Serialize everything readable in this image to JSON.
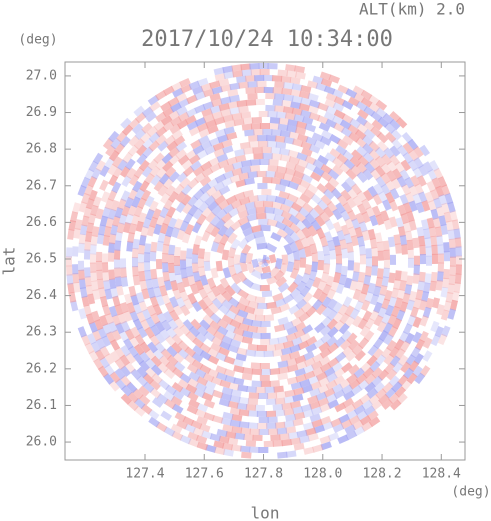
{
  "chart_data": {
    "type": "radar-ppi",
    "title": "2017/10/24 10:34:00",
    "altitude_label": "ALT(km) 2.0",
    "x_label": "lon",
    "y_label": "lat",
    "x_unit": "(deg)",
    "y_unit": "(deg)",
    "xlim": [
      127.13,
      128.48
    ],
    "ylim": [
      25.951,
      27.038
    ],
    "xticks": [
      127.4,
      127.6,
      127.8,
      {
        "value": 128.0,
        "label": "128.0"
      },
      128.2,
      128.4
    ],
    "yticks": [
      {
        "value": 26.0,
        "label": "26.0"
      },
      26.1,
      26.2,
      26.3,
      26.4,
      26.5,
      26.6,
      26.7,
      26.8,
      26.9,
      {
        "value": 27.0,
        "label": "27.0"
      }
    ],
    "colors": [
      "#f29a9a",
      "#9fa2f2"
    ]
  }
}
